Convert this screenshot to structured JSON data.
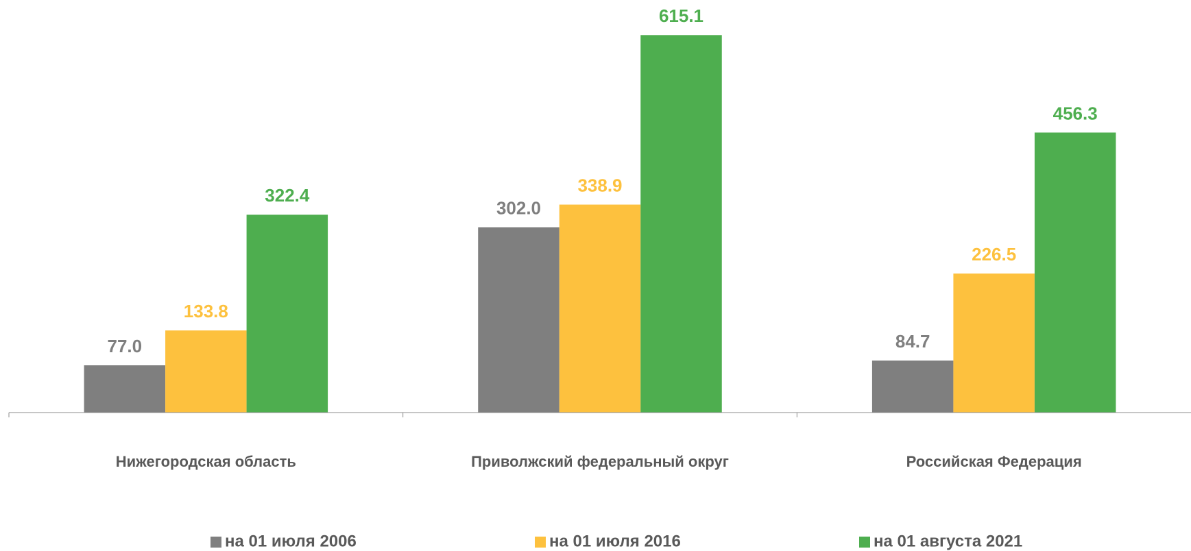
{
  "chart_data": {
    "type": "bar",
    "categories": [
      "Нижегородская область",
      "Приволжский федеральный округ",
      "Российская Федерация"
    ],
    "series": [
      {
        "name": "на 01 июля 2006",
        "color": "#7f7f7f",
        "values": [
          77.0,
          302.0,
          84.7
        ],
        "value_labels": [
          "77.0",
          "302.0",
          "84.7"
        ]
      },
      {
        "name": "на 01 июля 2016",
        "color": "#fdc13e",
        "values": [
          133.8,
          338.9,
          226.5
        ],
        "value_labels": [
          "133.8",
          "338.9",
          "226.5"
        ]
      },
      {
        "name": "на 01 августа 2021",
        "color": "#4eae4f",
        "values": [
          322.4,
          615.1,
          456.3
        ],
        "value_labels": [
          "322.4",
          "615.1",
          "456.3"
        ]
      }
    ],
    "ylim": [
      0,
      650
    ],
    "legend": "bottom"
  }
}
